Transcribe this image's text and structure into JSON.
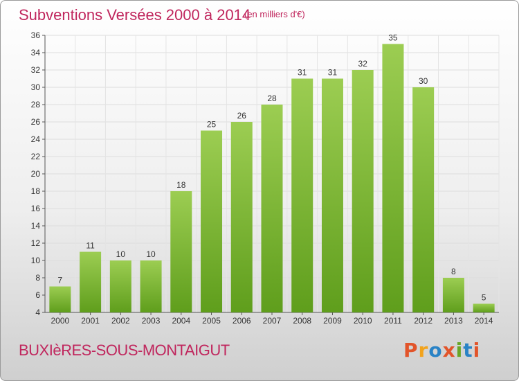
{
  "header": {
    "title": "Subventions Versées 2000 à 2014",
    "unit": "(en milliers d'€)"
  },
  "footer": {
    "commune": "BUXIèRES-SOUS-MONTAIGUT",
    "logo_text": "Proxiti"
  },
  "colors": {
    "title": "#c0265d",
    "bar_light": "#9ccd52",
    "bar_dark": "#5f9e1c",
    "logo_letters": [
      "#e2542a",
      "#f2a31c",
      "#2a83c6",
      "#e2542a",
      "#6aa626",
      "#2a83c6",
      "#e2542a"
    ]
  },
  "chart_data": {
    "type": "bar",
    "categories": [
      "2000",
      "2001",
      "2002",
      "2003",
      "2004",
      "2005",
      "2006",
      "2007",
      "2008",
      "2009",
      "2010",
      "2011",
      "2012",
      "2013",
      "2014"
    ],
    "values": [
      7,
      11,
      10,
      10,
      18,
      25,
      26,
      28,
      31,
      31,
      32,
      35,
      30,
      8,
      5
    ],
    "ylim": [
      4,
      36
    ],
    "yticks": [
      4,
      6,
      8,
      10,
      12,
      14,
      16,
      18,
      20,
      22,
      24,
      26,
      28,
      30,
      32,
      34,
      36
    ],
    "grid": true
  }
}
